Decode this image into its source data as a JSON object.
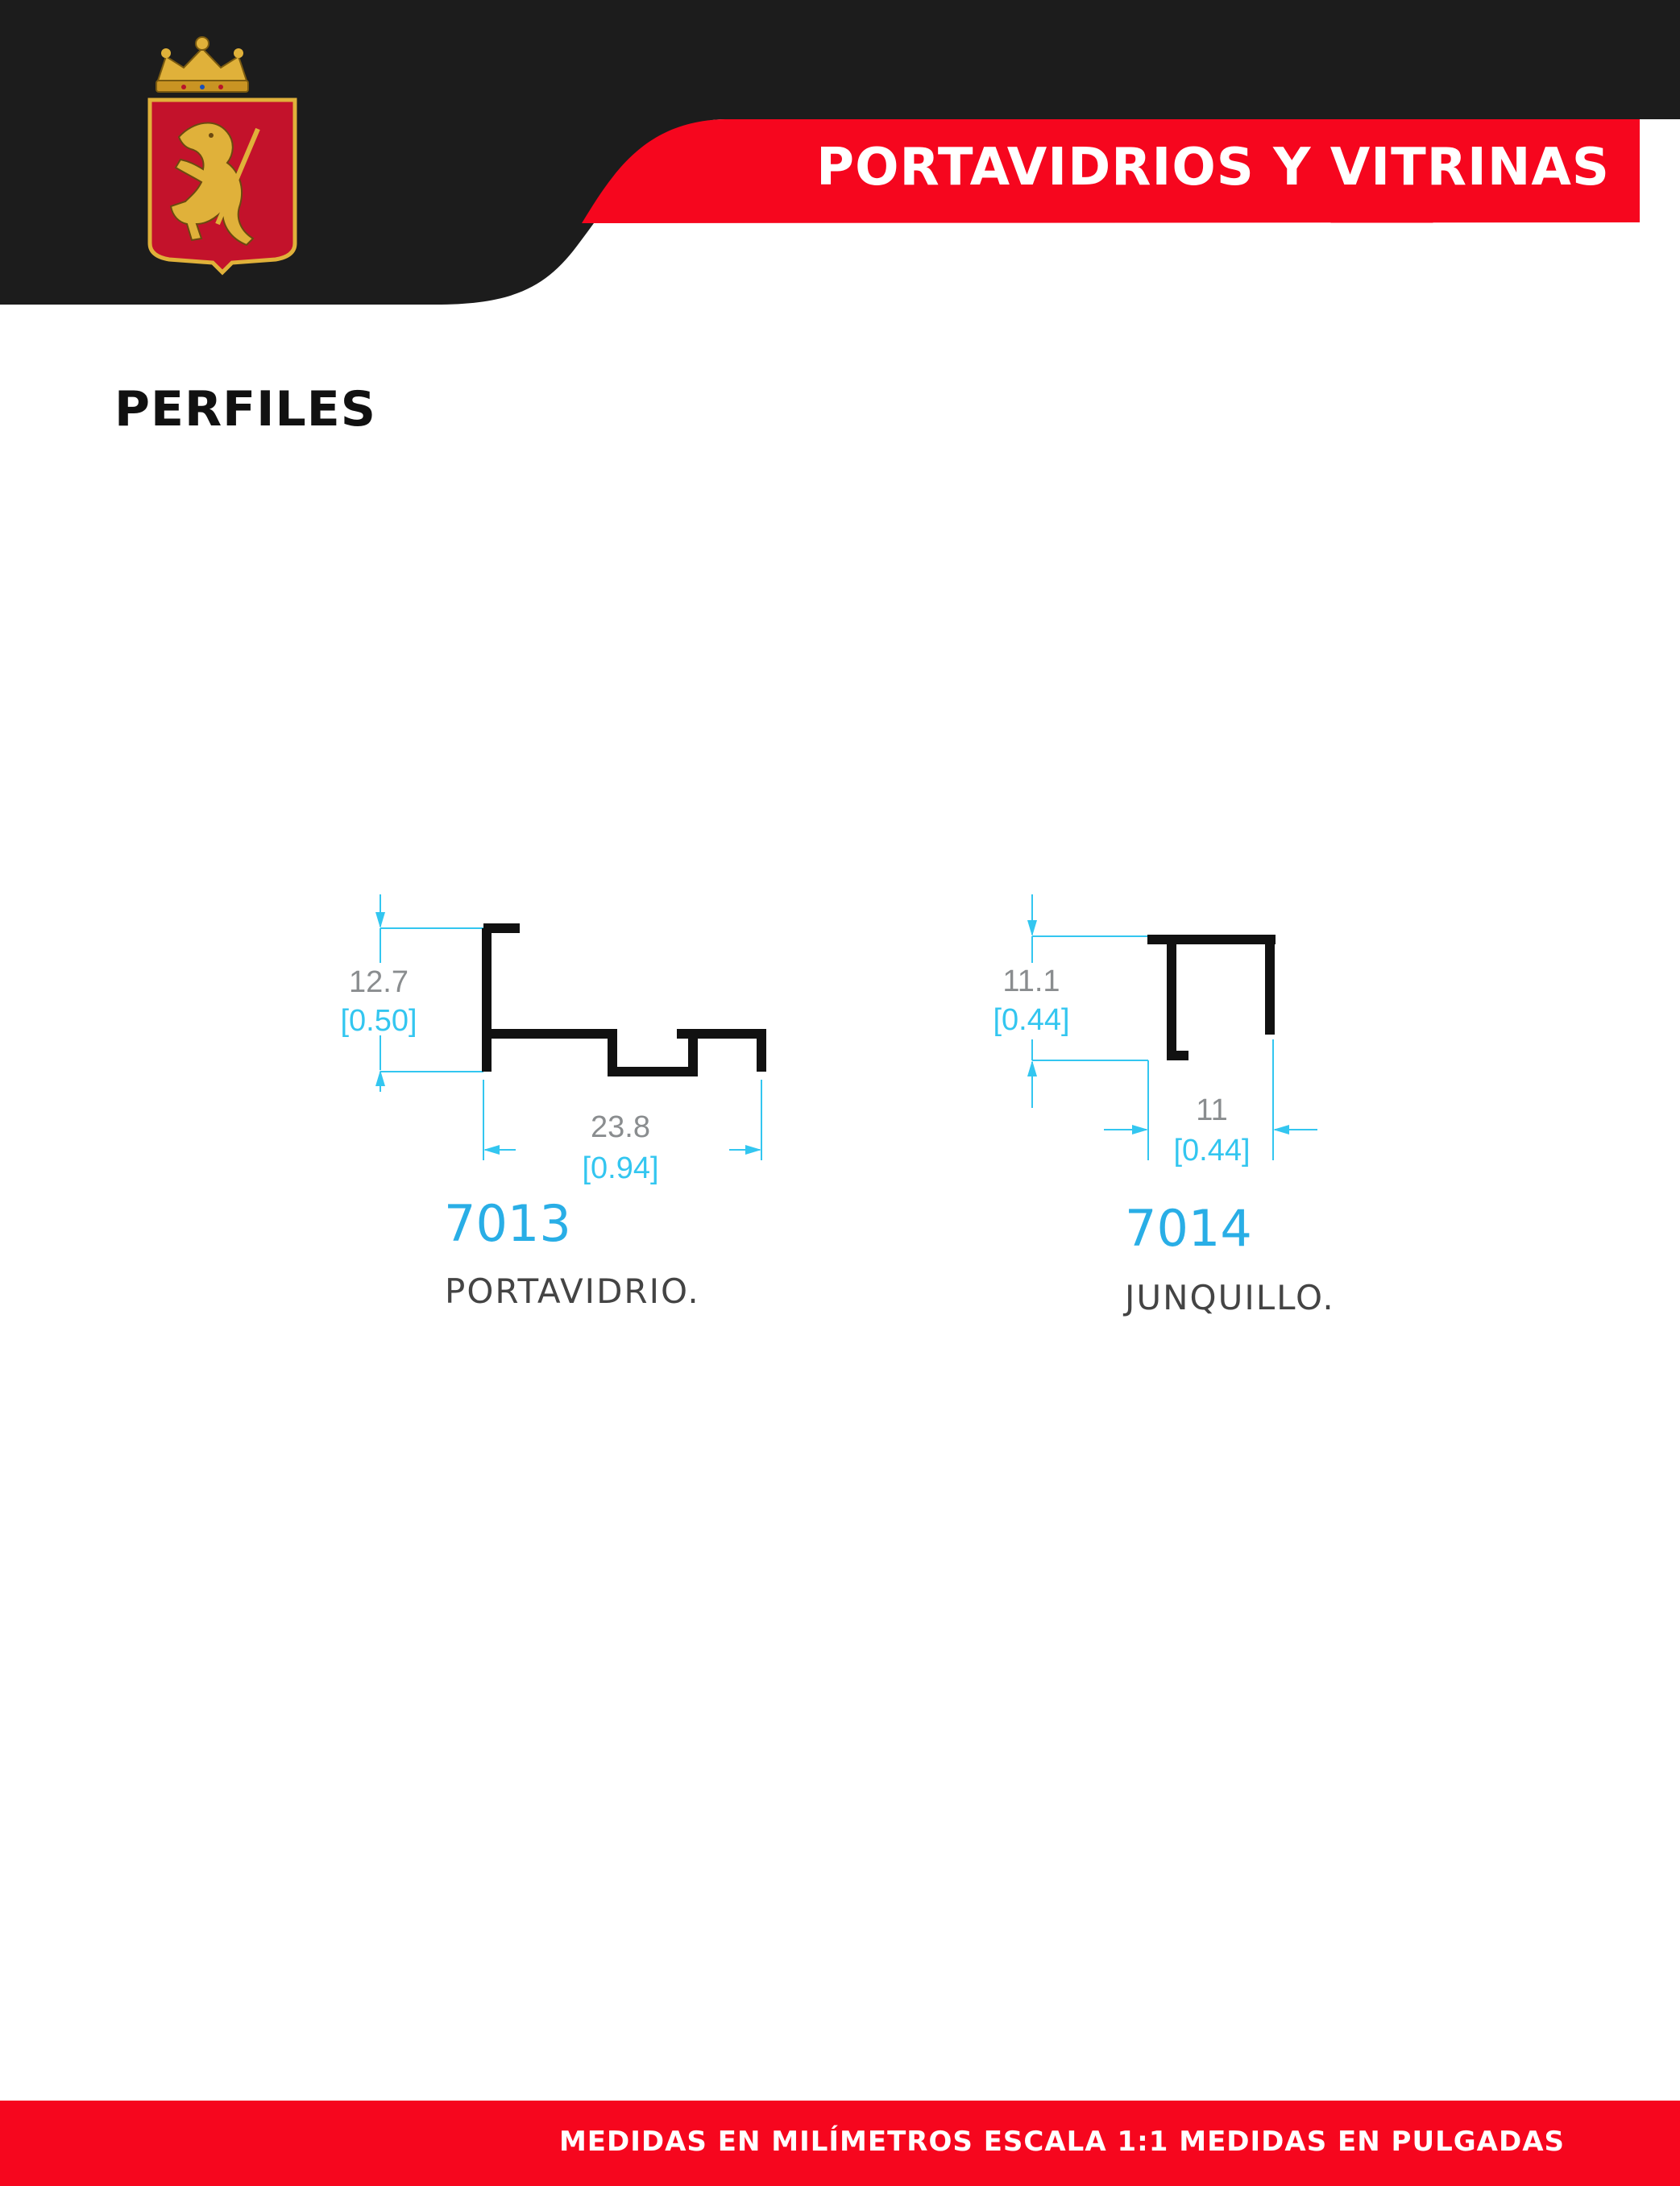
{
  "header": {
    "title": "PORTAVIDRIOS Y VITRINAS",
    "logo_icon": "crowned-lion-coat-of-arms-icon",
    "colors": {
      "dark": "#1c1c1c",
      "accent": "#f6061e",
      "gold": "#e0b13a"
    }
  },
  "section": {
    "title": "PERFILES"
  },
  "profiles": [
    {
      "code": "7013",
      "name": "PORTAVIDRIO.",
      "height": {
        "mm": "12.7",
        "in": "[0.50]"
      },
      "width": {
        "mm": "23.8",
        "in": "[0.94]"
      }
    },
    {
      "code": "7014",
      "name": "JUNQUILLO.",
      "height": {
        "mm": "11.1",
        "in": "[0.44]"
      },
      "width": {
        "mm": "11",
        "in": "[0.44]"
      }
    }
  ],
  "footer": {
    "text": "MEDIDAS EN MILÍMETROS ESCALA 1:1 MEDIDAS EN PULGADAS"
  },
  "colors": {
    "dimension_line": "#33c6f0",
    "profile": "#111111"
  }
}
